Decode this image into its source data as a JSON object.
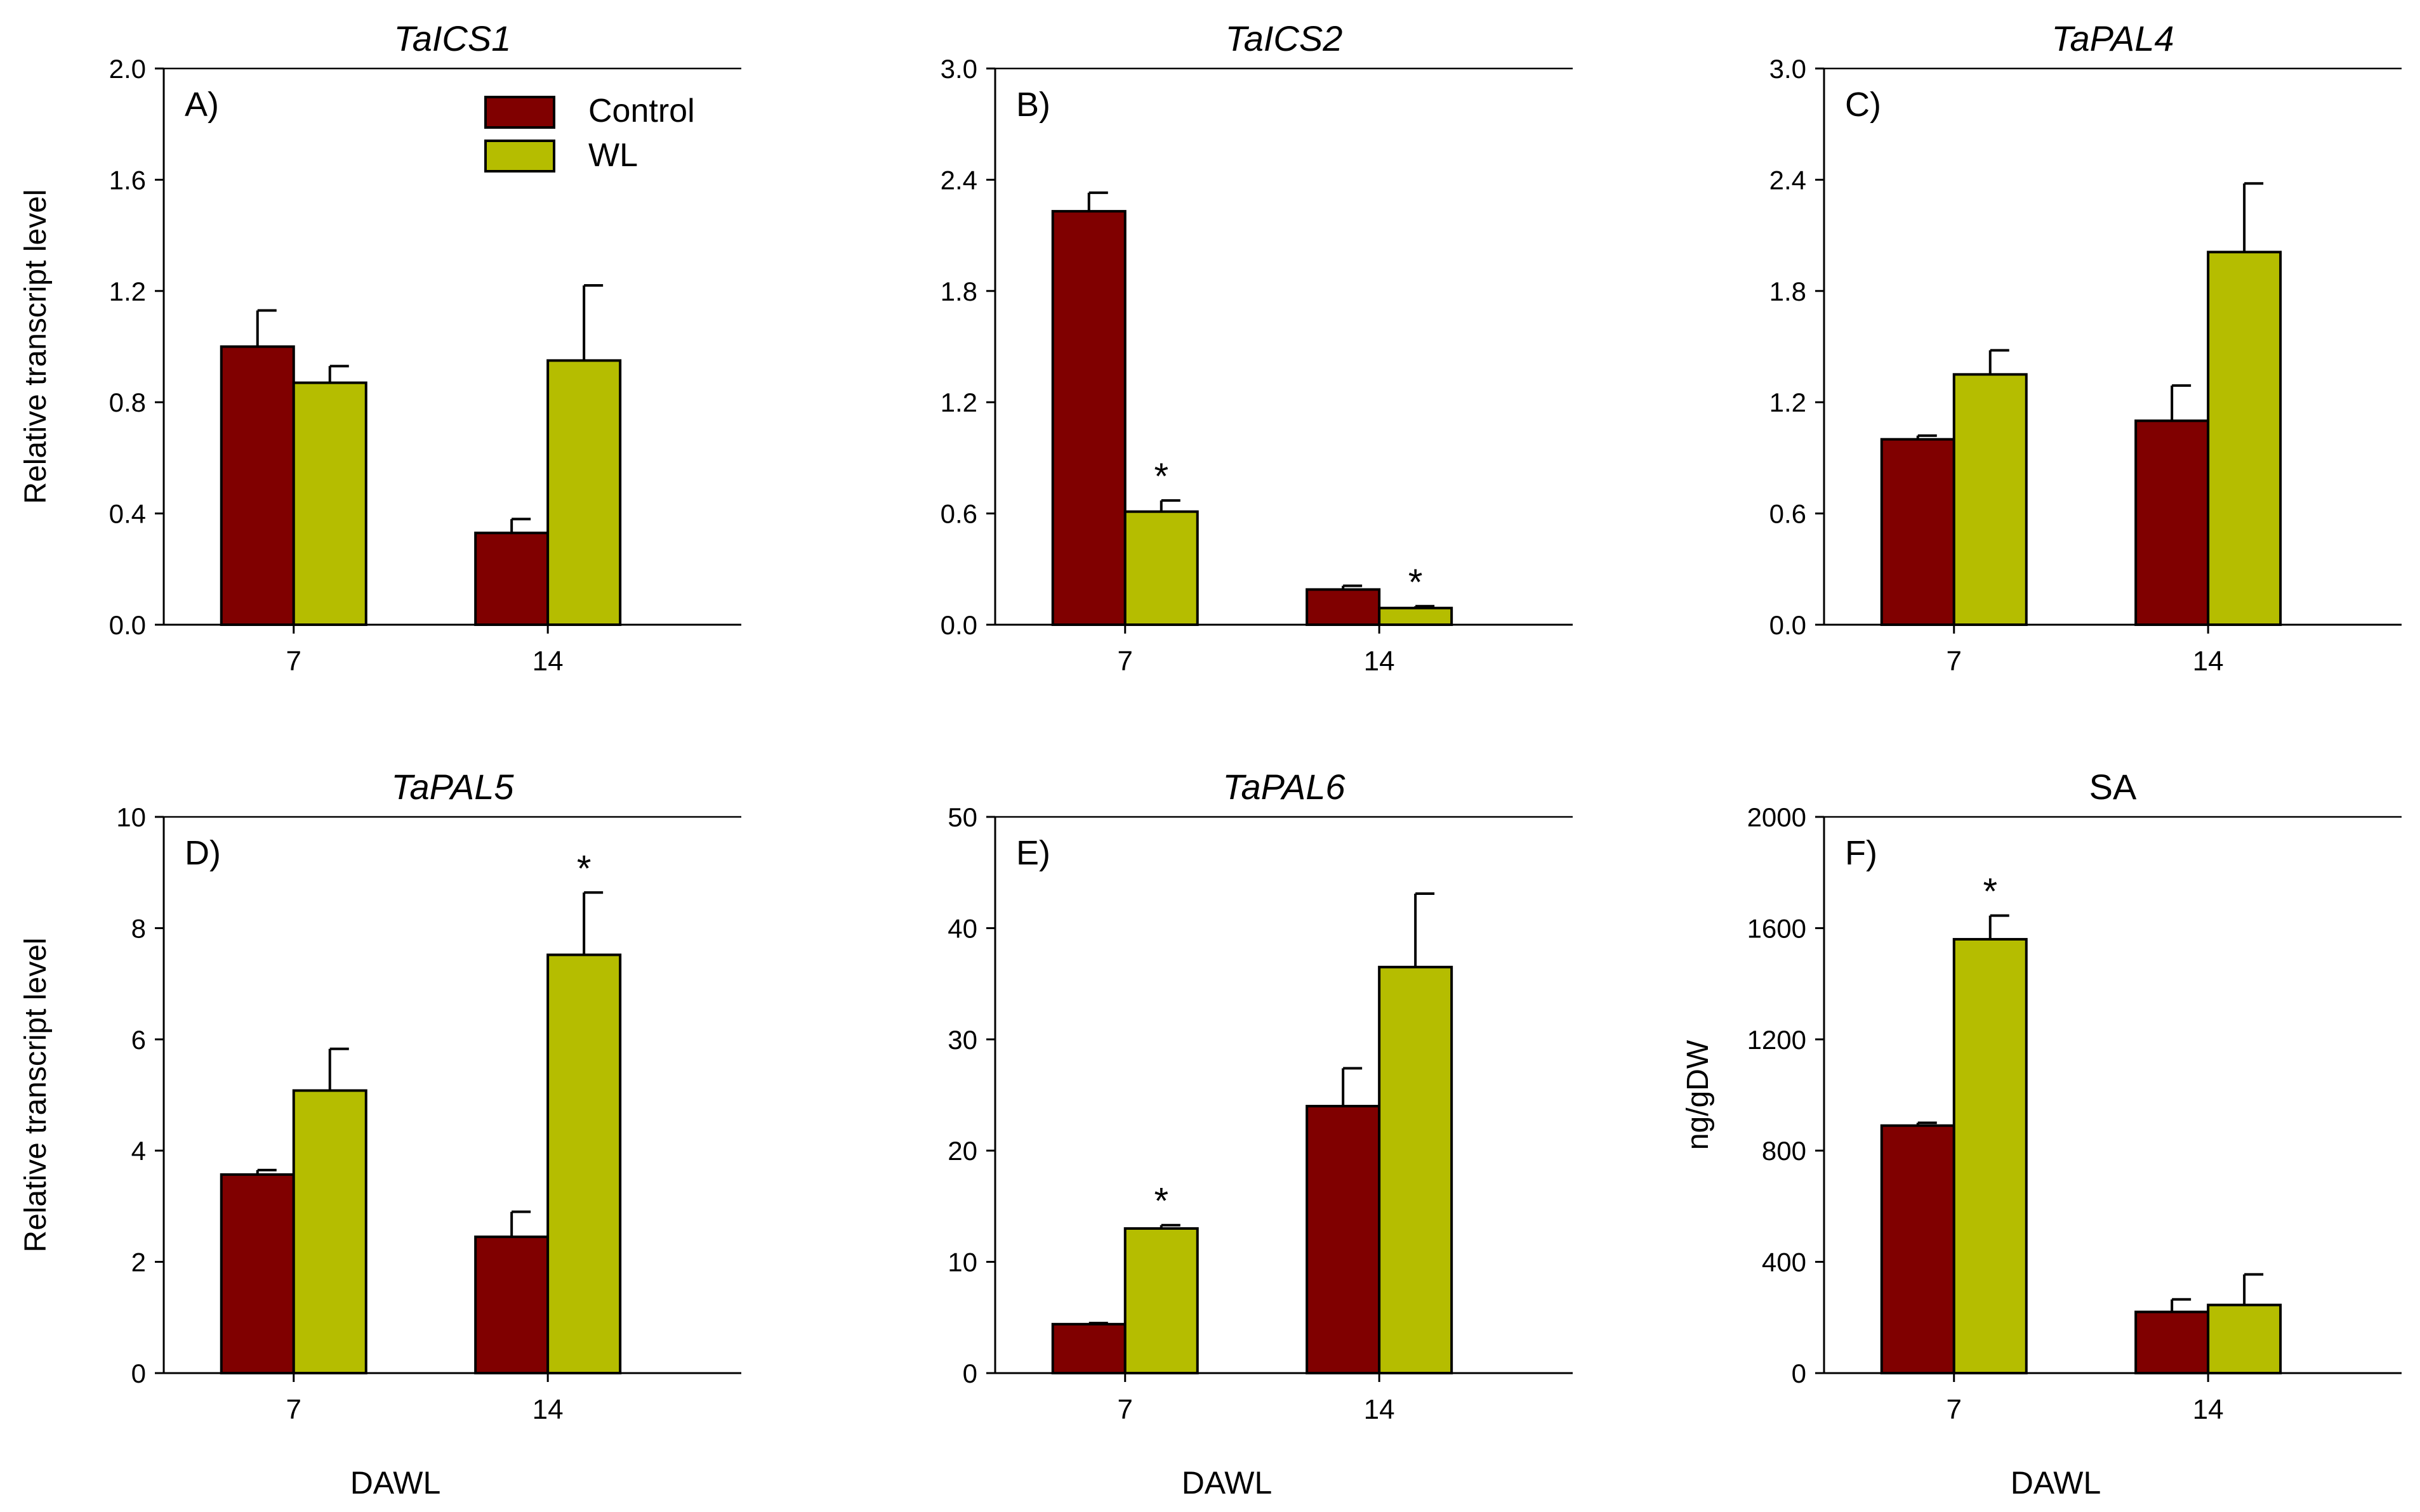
{
  "colors": {
    "control": "#800000",
    "wl": "#b5bd00",
    "axis": "#000000"
  },
  "legend": {
    "control_label": "Control",
    "wl_label": "WL"
  },
  "shared": {
    "ylabel_transcript": "Relative transcript level",
    "xlabel": "DAWL"
  },
  "chart_data": [
    {
      "type": "bar",
      "title": "TaICS1",
      "panel_label": "A)",
      "categories": [
        "7",
        "14"
      ],
      "ylim": [
        0,
        2.0
      ],
      "yticks": [
        "0.0",
        "0.4",
        "0.8",
        "1.2",
        "1.6",
        "2.0"
      ],
      "ylabel": "Relative transcript level",
      "xlabel": "",
      "series": [
        {
          "name": "Control",
          "values": [
            1.0,
            0.33
          ],
          "errors": [
            0.13,
            0.05
          ],
          "sig": [
            false,
            false
          ]
        },
        {
          "name": "WL",
          "values": [
            0.87,
            0.95
          ],
          "errors": [
            0.06,
            0.27
          ],
          "sig": [
            false,
            false
          ]
        }
      ]
    },
    {
      "type": "bar",
      "title": "TaICS2",
      "panel_label": "B)",
      "categories": [
        "7",
        "14"
      ],
      "ylim": [
        0,
        3.0
      ],
      "yticks": [
        "0.0",
        "0.6",
        "1.2",
        "1.8",
        "2.4",
        "3.0"
      ],
      "ylabel": "",
      "xlabel": "",
      "series": [
        {
          "name": "Control",
          "values": [
            2.23,
            0.19
          ],
          "errors": [
            0.1,
            0.02
          ],
          "sig": [
            false,
            false
          ]
        },
        {
          "name": "WL",
          "values": [
            0.61,
            0.09
          ],
          "errors": [
            0.06,
            0.01
          ],
          "sig": [
            true,
            true
          ]
        }
      ]
    },
    {
      "type": "bar",
      "title": "TaPAL4",
      "panel_label": "C)",
      "categories": [
        "7",
        "14"
      ],
      "ylim": [
        0,
        3.0
      ],
      "yticks": [
        "0.0",
        "0.6",
        "1.2",
        "1.8",
        "2.4",
        "3.0"
      ],
      "ylabel": "",
      "xlabel": "",
      "series": [
        {
          "name": "Control",
          "values": [
            1.0,
            1.1
          ],
          "errors": [
            0.02,
            0.19
          ],
          "sig": [
            false,
            false
          ]
        },
        {
          "name": "WL",
          "values": [
            1.35,
            2.01
          ],
          "errors": [
            0.13,
            0.37
          ],
          "sig": [
            false,
            false
          ]
        }
      ]
    },
    {
      "type": "bar",
      "title": "TaPAL5",
      "panel_label": "D)",
      "categories": [
        "7",
        "14"
      ],
      "ylim": [
        0,
        10
      ],
      "yticks": [
        "0",
        "2",
        "4",
        "6",
        "8",
        "10"
      ],
      "ylabel": "Relative transcript level",
      "xlabel": "DAWL",
      "series": [
        {
          "name": "Control",
          "values": [
            3.57,
            2.45
          ],
          "errors": [
            0.08,
            0.45
          ],
          "sig": [
            false,
            false
          ]
        },
        {
          "name": "WL",
          "values": [
            5.08,
            7.52
          ],
          "errors": [
            0.75,
            1.12
          ],
          "sig": [
            false,
            true
          ]
        }
      ]
    },
    {
      "type": "bar",
      "title": "TaPAL6",
      "panel_label": "E)",
      "categories": [
        "7",
        "14"
      ],
      "ylim": [
        0,
        50
      ],
      "yticks": [
        "0",
        "10",
        "20",
        "30",
        "40",
        "50"
      ],
      "ylabel": "",
      "xlabel": "DAWL",
      "series": [
        {
          "name": "Control",
          "values": [
            4.4,
            24.0
          ],
          "errors": [
            0.1,
            3.4
          ],
          "sig": [
            false,
            false
          ]
        },
        {
          "name": "WL",
          "values": [
            13.0,
            36.5
          ],
          "errors": [
            0.3,
            6.6
          ],
          "sig": [
            true,
            false
          ]
        }
      ]
    },
    {
      "type": "bar",
      "title": "SA",
      "panel_label": "F)",
      "categories": [
        "7",
        "14"
      ],
      "ylim": [
        0,
        2000
      ],
      "yticks": [
        "0",
        "400",
        "800",
        "1200",
        "1600",
        "2000"
      ],
      "ylabel": "ng/gDW",
      "xlabel": "DAWL",
      "series": [
        {
          "name": "Control",
          "values": [
            890,
            220
          ],
          "errors": [
            10,
            45
          ],
          "sig": [
            false,
            false
          ]
        },
        {
          "name": "WL",
          "values": [
            1560,
            245
          ],
          "errors": [
            85,
            110
          ],
          "sig": [
            true,
            false
          ]
        }
      ]
    }
  ]
}
